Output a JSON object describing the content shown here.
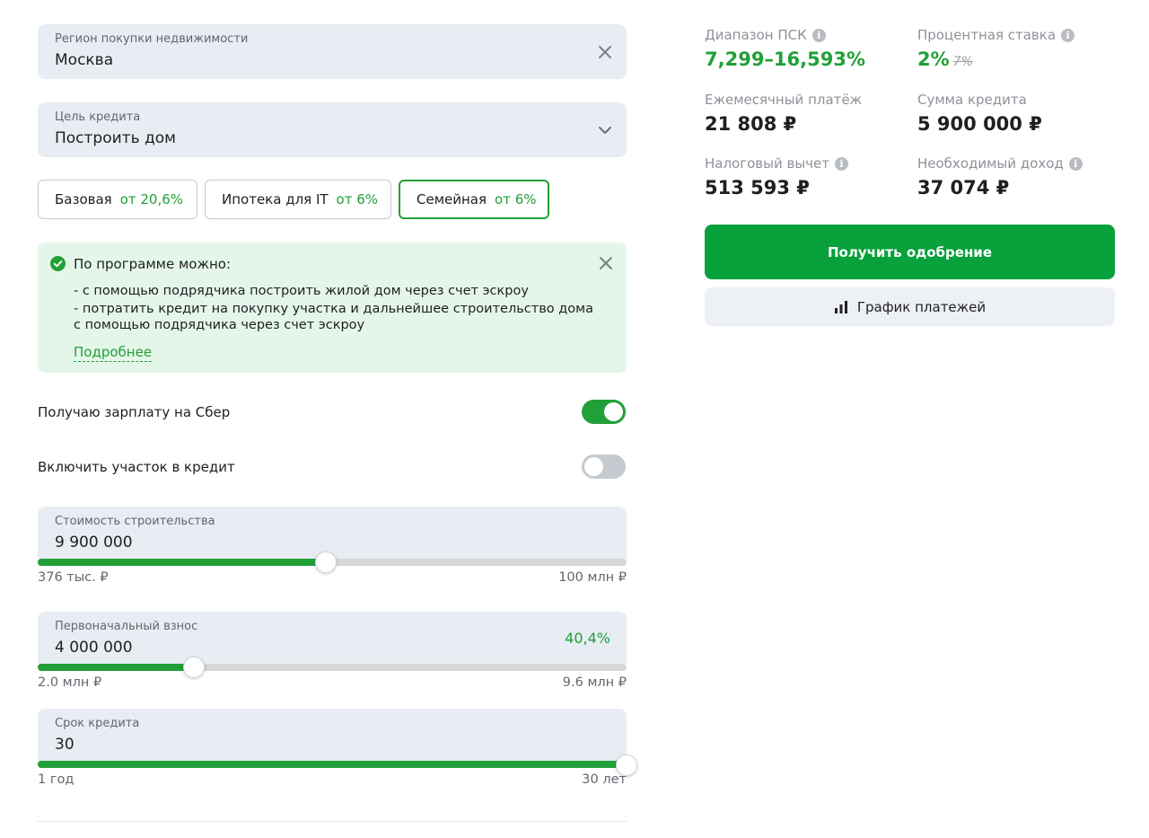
{
  "form": {
    "region": {
      "label": "Регион покупки недвижимости",
      "value": "Москва"
    },
    "purpose": {
      "label": "Цель кредита",
      "value": "Построить дом"
    },
    "programs": [
      {
        "name": "Базовая",
        "rate": "от 20,6%",
        "active": false
      },
      {
        "name": "Ипотека для IT",
        "rate": "от 6%",
        "active": false
      },
      {
        "name": "Семейная",
        "rate": "от 6%",
        "active": true
      }
    ],
    "info": {
      "title": "По программе можно:",
      "item1": "-  с помощью подрядчика построить жилой дом через счет эскроу",
      "item2": "-  потратить кредит на покупку участка и дальнейшее строительство дома",
      "item2_cont": "с помощью подрядчика через счет эскроу",
      "more": "Подробнее"
    },
    "salary_toggle": {
      "label": "Получаю зарплату на Сбер",
      "on": true
    },
    "land_toggle": {
      "label": "Включить участок в кредит",
      "on": false
    },
    "cost": {
      "label": "Стоимость строительства",
      "value": "9 900 000",
      "min": "376 тыс. ₽",
      "max": "100 млн ₽",
      "fill": 0.49
    },
    "down_payment": {
      "label": "Первоначальный взнос",
      "value": "4 000 000",
      "percent": "40,4%",
      "min": "2.0 млн ₽",
      "max": "9.6 млн ₽",
      "fill": 0.265
    },
    "term": {
      "label": "Срок кредита",
      "value": "30",
      "min": "1 год",
      "max": "30 лет",
      "fill": 1.0
    }
  },
  "summary": {
    "psk": {
      "label": "Диапазон ПСК",
      "value": "7,299–16,593%"
    },
    "rate": {
      "label": "Процентная ставка",
      "value": "2%",
      "old": "7%"
    },
    "monthly": {
      "label": "Ежемесячный платёж",
      "value": "21 808 ₽"
    },
    "loan": {
      "label": "Сумма кредита",
      "value": "5 900 000 ₽"
    },
    "tax": {
      "label": "Налоговый вычет",
      "value": "513 593 ₽"
    },
    "income": {
      "label": "Необходимый доход",
      "value": "37 074 ₽"
    },
    "approve_button": "Получить одобрение",
    "schedule_button": "График платежей"
  },
  "icons": {
    "close": "close-icon",
    "chevron": "chevron-down-icon",
    "check": "check-circle-icon",
    "info": "info-icon",
    "chart": "bar-chart-icon"
  },
  "colors": {
    "accent": "#21a038",
    "field_bg": "#e8edf3",
    "info_bg": "#e4f6e9"
  }
}
